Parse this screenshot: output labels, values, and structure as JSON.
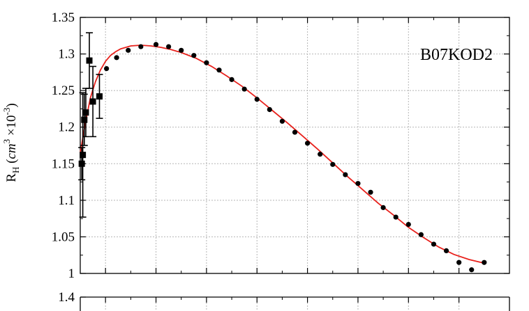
{
  "chart_data": {
    "type": "scatter",
    "annotation": "B07KOD2",
    "ylabel": {
      "main": "R",
      "main_sub": "H",
      "paren_open": " (",
      "unit": "cm",
      "unit_sup": "3",
      "times": " ×10",
      "exp": "-3",
      "paren_close": ")"
    },
    "xlim": [
      0,
      8.5
    ],
    "ylim": [
      1.0,
      1.35
    ],
    "y_ticks": [
      1,
      1.05,
      1.1,
      1.15,
      1.2,
      1.25,
      1.3,
      1.35
    ],
    "y_tick_labels": [
      "1",
      "1.05",
      "1.1",
      "1.15",
      "1.2",
      "1.25",
      "1.3",
      "1.35"
    ],
    "x_gridlines": [
      0.5,
      1.5,
      2.5,
      3.5,
      4.5,
      5.5,
      6.5,
      7.5
    ],
    "grid": true,
    "lower_panel_top_tick_label": "1.4",
    "series": [
      {
        "kind": "circle-markers",
        "x": [
          0.52,
          0.72,
          0.95,
          1.2,
          1.5,
          1.75,
          2.0,
          2.25,
          2.5,
          2.75,
          3.0,
          3.25,
          3.5,
          3.75,
          4.0,
          4.25,
          4.5,
          4.75,
          5.0,
          5.25,
          5.5,
          5.75,
          6.0,
          6.25,
          6.5,
          6.75,
          7.0,
          7.25,
          7.5,
          7.75,
          8.0
        ],
        "y": [
          1.28,
          1.295,
          1.305,
          1.31,
          1.313,
          1.31,
          1.305,
          1.298,
          1.288,
          1.278,
          1.265,
          1.252,
          1.238,
          1.224,
          1.208,
          1.193,
          1.178,
          1.163,
          1.149,
          1.135,
          1.123,
          1.111,
          1.09,
          1.077,
          1.067,
          1.053,
          1.04,
          1.031,
          1.015,
          1.005,
          1.015
        ]
      },
      {
        "kind": "square-markers-with-error-bars",
        "x": [
          0.03,
          0.05,
          0.08,
          0.11,
          0.18,
          0.25,
          0.38
        ],
        "y": [
          1.15,
          1.162,
          1.21,
          1.22,
          1.291,
          1.235,
          1.242
        ],
        "err": [
          0.022,
          0.085,
          0.035,
          0.033,
          0.038,
          0.048,
          0.03
        ]
      },
      {
        "kind": "fit-curve",
        "color": "#e8211c",
        "x": [
          0.0,
          0.1,
          0.2,
          0.3,
          0.4,
          0.5,
          0.6,
          0.7,
          0.8,
          1.0,
          1.2,
          1.4,
          1.6,
          1.8,
          2.0,
          2.3,
          2.6,
          2.9,
          3.2,
          3.5,
          3.8,
          4.1,
          4.4,
          4.7,
          5.0,
          5.3,
          5.6,
          5.9,
          6.2,
          6.5,
          6.8,
          7.1,
          7.4,
          7.7,
          8.0
        ],
        "y": [
          1.165,
          1.205,
          1.24,
          1.262,
          1.278,
          1.29,
          1.298,
          1.303,
          1.307,
          1.311,
          1.312,
          1.311,
          1.309,
          1.306,
          1.302,
          1.294,
          1.283,
          1.27,
          1.256,
          1.24,
          1.223,
          1.206,
          1.188,
          1.17,
          1.151,
          1.132,
          1.114,
          1.096,
          1.08,
          1.063,
          1.049,
          1.036,
          1.026,
          1.019,
          1.014
        ]
      }
    ]
  }
}
